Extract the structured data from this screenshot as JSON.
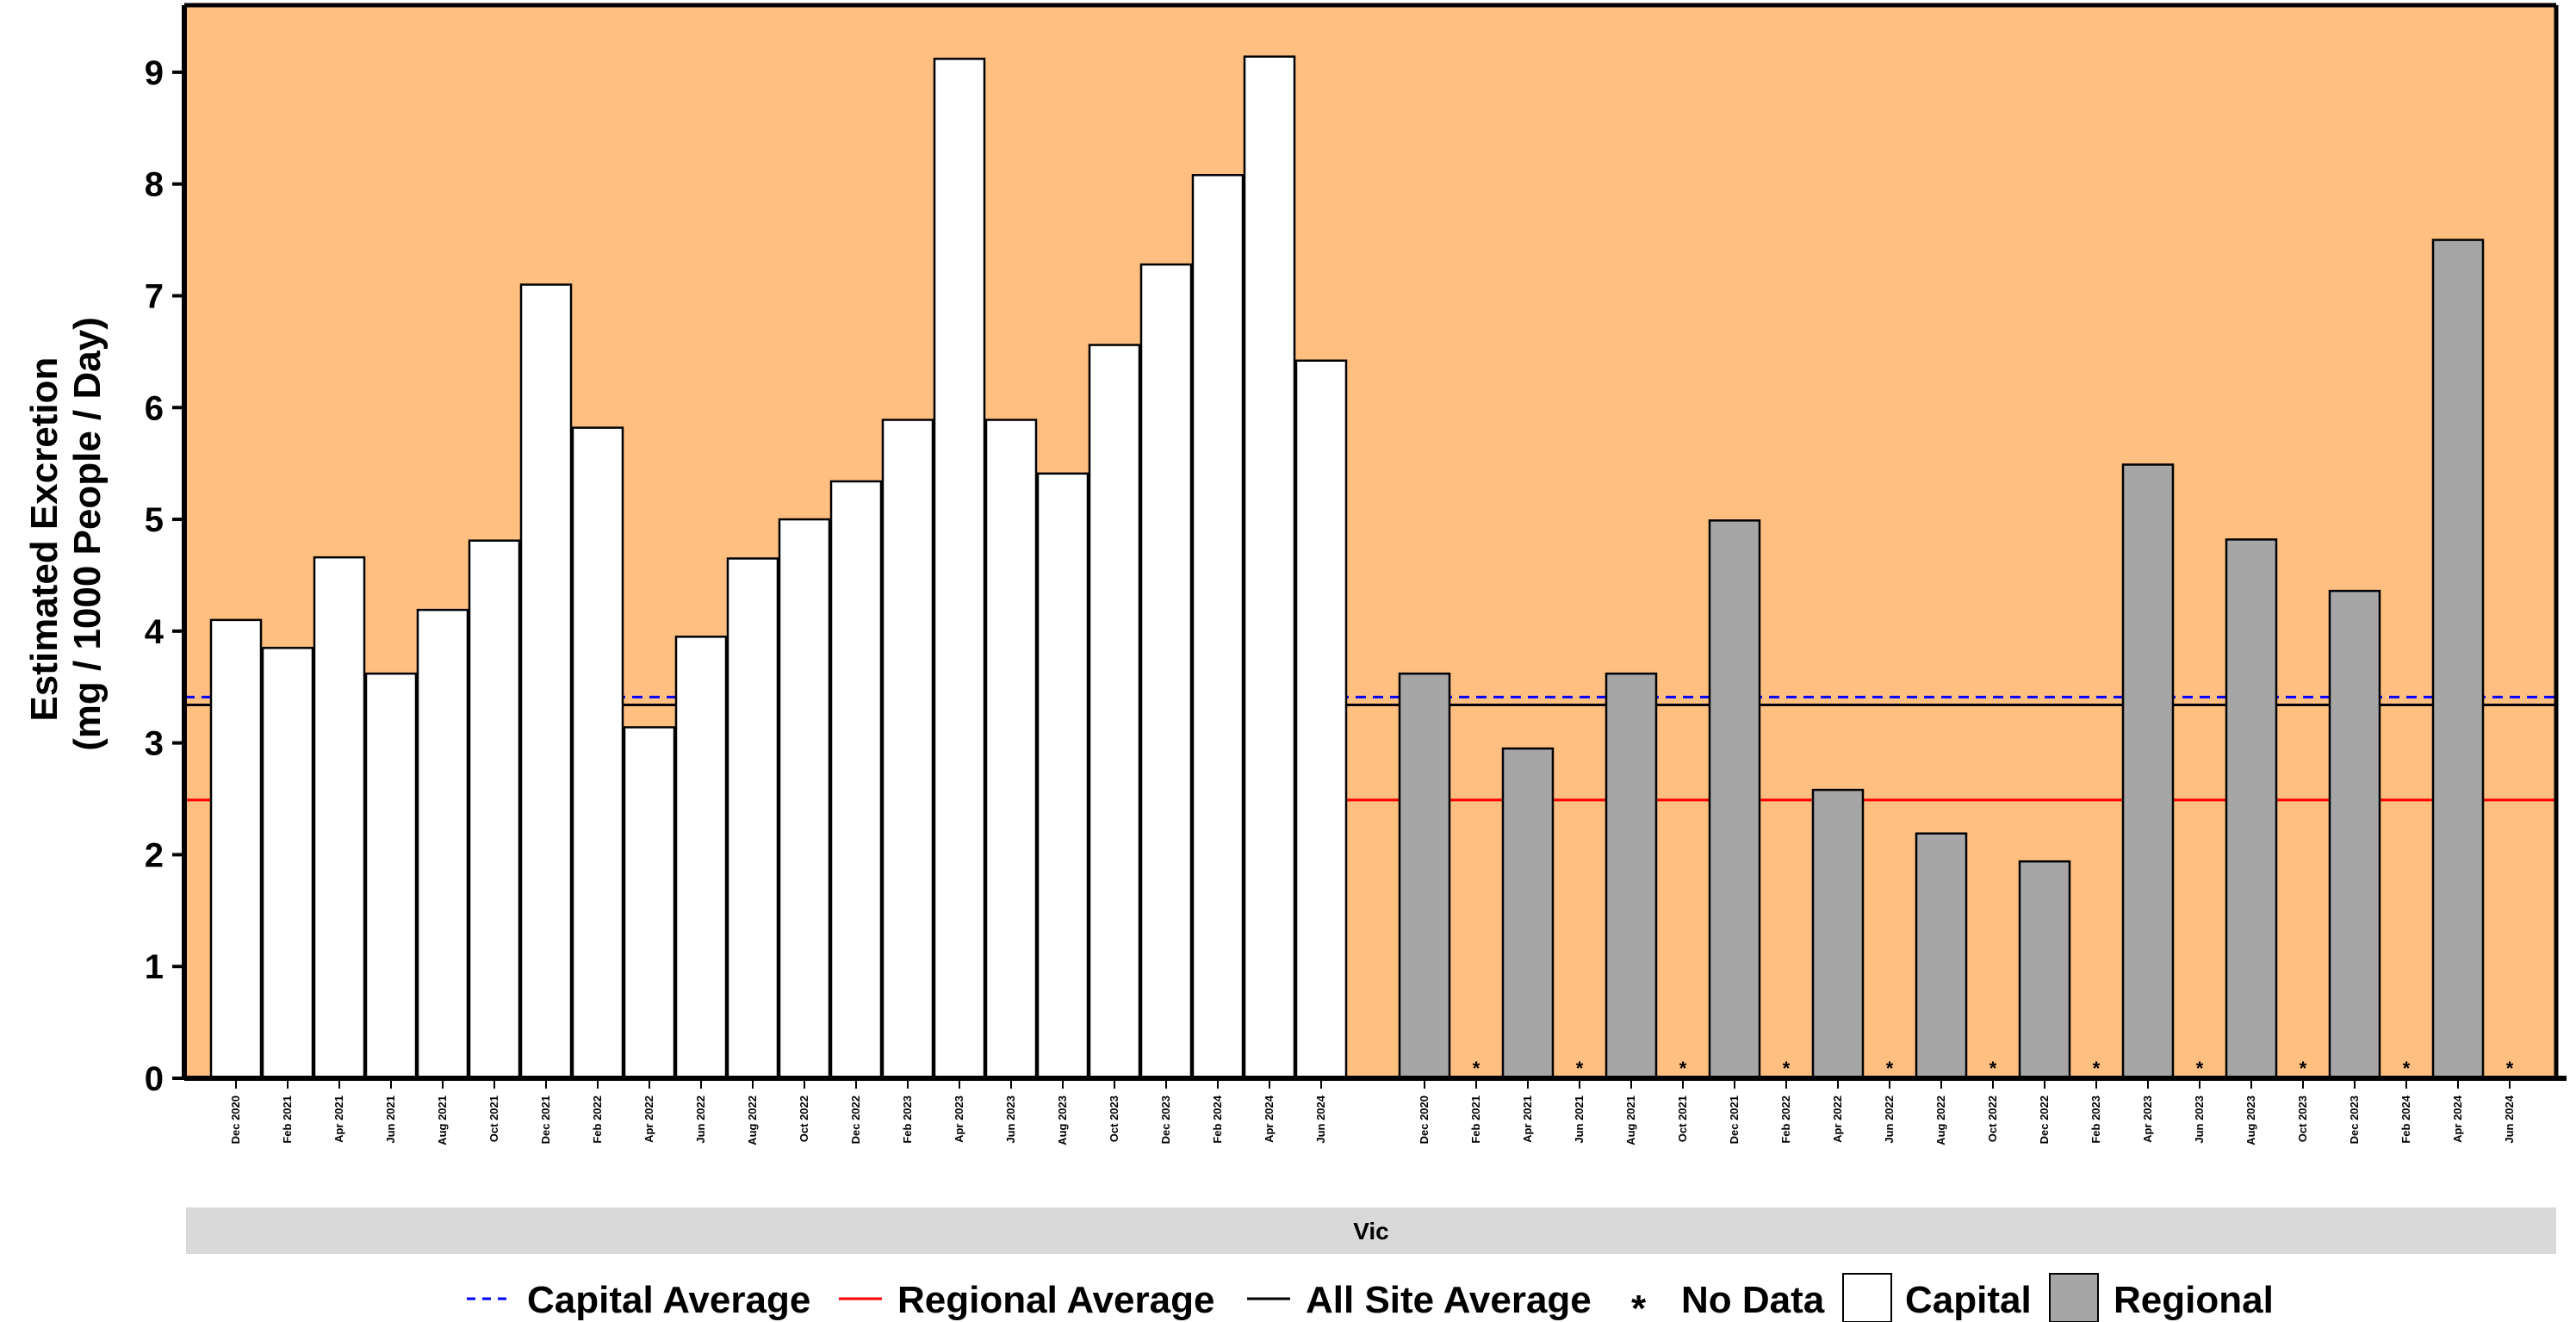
{
  "chart_data": {
    "type": "bar",
    "title": "",
    "xlabel": "",
    "ylabel_lines": [
      "Estimated Excretion",
      "(mg / 1000 People / Day)"
    ],
    "ylim": [
      0,
      9.6
    ],
    "yticks": [
      0,
      1,
      2,
      3,
      4,
      5,
      6,
      7,
      8,
      9
    ],
    "panel_label": "Vic",
    "background_color": "#FFBF80",
    "capital_color": "#FFFFFF",
    "regional_color": "#A6A6A6",
    "capital_categories": [
      "Dec 2020",
      "Feb 2021",
      "Apr 2021",
      "Jun 2021",
      "Aug 2021",
      "Oct 2021",
      "Dec 2021",
      "Feb 2022",
      "Apr 2022",
      "Jun 2022",
      "Aug 2022",
      "Oct 2022",
      "Dec 2022",
      "Feb 2023",
      "Apr 2023",
      "Jun 2023",
      "Aug 2023",
      "Oct 2023",
      "Dec 2023",
      "Feb 2024",
      "Apr 2024",
      "Jun 2024"
    ],
    "regional_categories": [
      "Dec 2020",
      "Feb 2021",
      "Apr 2021",
      "Jun 2021",
      "Aug 2021",
      "Oct 2021",
      "Dec 2021",
      "Feb 2022",
      "Apr 2022",
      "Jun 2022",
      "Aug 2022",
      "Oct 2022",
      "Dec 2022",
      "Feb 2023",
      "Apr 2023",
      "Jun 2023",
      "Aug 2023",
      "Oct 2023",
      "Dec 2023",
      "Feb 2024",
      "Apr 2024",
      "Jun 2024"
    ],
    "series": [
      {
        "name": "Capital",
        "values": [
          4.1,
          3.85,
          4.66,
          3.62,
          4.19,
          4.81,
          7.1,
          5.82,
          3.14,
          3.95,
          4.65,
          5.0,
          5.34,
          5.89,
          9.12,
          5.89,
          5.41,
          6.56,
          7.28,
          8.08,
          9.14,
          6.42
        ]
      },
      {
        "name": "Regional",
        "values": [
          3.62,
          null,
          2.95,
          null,
          3.62,
          null,
          4.99,
          null,
          2.58,
          null,
          2.19,
          null,
          1.94,
          null,
          5.49,
          null,
          4.82,
          null,
          4.36,
          null,
          7.5,
          null
        ]
      }
    ],
    "reference_lines": [
      {
        "name": "Capital Average",
        "value": 3.41,
        "color": "#0000FF",
        "style": "dashed"
      },
      {
        "name": "Regional Average",
        "value": 2.49,
        "color": "#FF0000",
        "style": "solid"
      },
      {
        "name": "All Site Average",
        "value": 3.34,
        "color": "#000000",
        "style": "solid"
      }
    ],
    "no_data_marker": "*",
    "grid": false,
    "legend_position": "bottom"
  },
  "legend": {
    "capital_average": "Capital Average",
    "regional_average": "Regional Average",
    "all_site_average": "All Site Average",
    "no_data_symbol": "*",
    "no_data": "No Data",
    "capital": "Capital",
    "regional": "Regional"
  }
}
